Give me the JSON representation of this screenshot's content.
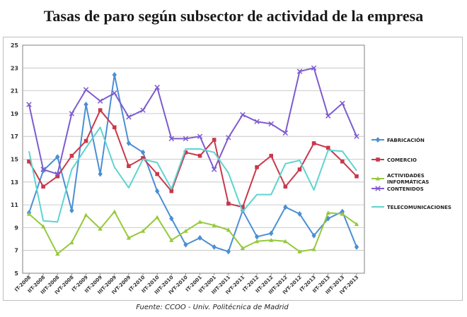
{
  "page": {
    "title": "Tasas de paro según subsector de actividad de la empresa",
    "source": "Fuente: CCOO - Univ. Politécnica de Madrid"
  },
  "chart_data": {
    "type": "line",
    "title": "Tasas de paro según subsector de actividad de la empresa",
    "xlabel": "",
    "ylabel": "",
    "ylim": [
      5,
      25
    ],
    "yticks": [
      5,
      7,
      9,
      11,
      13,
      15,
      17,
      19,
      21,
      23,
      25
    ],
    "grid": true,
    "legend_position": "right",
    "categories": [
      "IT-2008",
      "IIT-2008",
      "IIIT-2008",
      "IVT-2008",
      "IT-2009",
      "IIT-2009",
      "IIIT-2009",
      "IVT-2009",
      "IT-2010",
      "IIT-2010",
      "IIIT-2010",
      "IVT-2010",
      "IT-2001",
      "IIT-2001",
      "IIIT-2011",
      "IVT-2011",
      "IT-2012",
      "IIT-2012",
      "IIIT-2012",
      "IVT-2012",
      "IT-2013",
      "IIT-2013",
      "IIIT-2013",
      "IVT-2013"
    ],
    "xtick_labels": [
      "IT-2008",
      "IIT-2008",
      "IIIT-2008",
      "IVT-2008",
      "IT-2009",
      "IIT-2009",
      "IIIT-2009",
      "IVT-2009",
      "IT-2010",
      "IIT-2010",
      "IIIT-2010",
      "IVT-2010",
      "IT-2001",
      "IIT-2001",
      "IIIT-2011",
      "IVT-2011",
      "IT-2012",
      "IIT-2012",
      "IIIT-2012",
      "IVT-2012",
      "IT-2013",
      "IIT-2013",
      "IIIT-2013",
      "IVT-2013"
    ],
    "series": [
      {
        "name": "FABRICACIÓN",
        "color": "#4a8fd4",
        "marker": "diamond",
        "values": [
          10.3,
          14.0,
          15.2,
          10.5,
          19.8,
          13.7,
          22.4,
          16.4,
          15.6,
          12.2,
          9.8,
          7.5,
          8.1,
          7.3,
          6.9,
          10.5,
          8.2,
          8.5,
          10.8,
          10.2,
          8.3,
          9.8,
          10.4,
          7.3
        ]
      },
      {
        "name": "COMERCIO",
        "color": "#c8384c",
        "marker": "square",
        "values": [
          14.8,
          12.6,
          13.5,
          15.3,
          16.6,
          19.3,
          17.8,
          14.4,
          15.1,
          13.7,
          12.2,
          15.6,
          15.3,
          16.7,
          11.1,
          10.8,
          14.3,
          15.3,
          12.6,
          14.1,
          16.4,
          16.0,
          14.8,
          13.5
        ]
      },
      {
        "name": "ACTIVIDADES INFORMÁTICAS",
        "color": "#95c93b",
        "marker": "triangle",
        "values": [
          10.2,
          9.1,
          6.7,
          7.7,
          10.1,
          8.9,
          10.4,
          8.1,
          8.7,
          9.9,
          7.9,
          8.7,
          9.5,
          9.2,
          8.8,
          7.2,
          7.8,
          7.9,
          7.8,
          6.9,
          7.1,
          10.3,
          10.2,
          9.3
        ]
      },
      {
        "name": "CONTENIDOS",
        "color": "#7e5bd0",
        "marker": "x",
        "values": [
          19.8,
          14.1,
          13.7,
          19.0,
          21.1,
          20.1,
          20.8,
          18.7,
          19.3,
          21.3,
          16.8,
          16.8,
          17.0,
          14.1,
          16.9,
          18.9,
          18.3,
          18.1,
          17.3,
          22.7,
          23.0,
          18.8,
          19.9,
          17.0
        ]
      },
      {
        "name": "TELECOMUNICACIONES",
        "color": "#5ed4d0",
        "marker": "none",
        "values": [
          15.7,
          9.6,
          9.5,
          14.1,
          16.0,
          17.8,
          14.3,
          12.5,
          15.0,
          14.7,
          12.4,
          15.9,
          15.9,
          15.6,
          13.8,
          10.4,
          11.9,
          11.9,
          14.6,
          14.9,
          12.3,
          15.8,
          15.7,
          14.0
        ]
      }
    ]
  }
}
